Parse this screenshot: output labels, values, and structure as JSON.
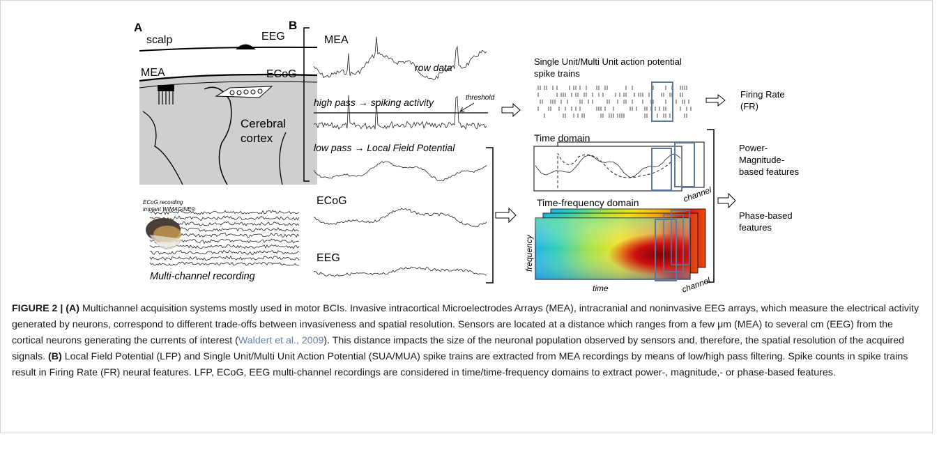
{
  "panel_a": {
    "label": "A",
    "scalp": "scalp",
    "eeg": "EEG",
    "mea": "MEA",
    "ecog": "ECoG",
    "cortex_line1": "Cerebral",
    "cortex_line2": "cortex",
    "implant_line1": "ECoG recording",
    "implant_line2": "implant WIMAGINE®",
    "multichannel": "Multi-channel  recording"
  },
  "panel_b": {
    "label": "B",
    "mea": "MEA",
    "row_data": "row data",
    "high_pass": "high pass → spiking activity",
    "threshold": "threshold",
    "low_pass": "low pass → Local Field Potential",
    "ecog": "ECoG",
    "eeg": "EEG",
    "spike_title_line1": "Single Unit/Multi Unit action potential",
    "spike_title_line2": "spike trains",
    "firing_rate_line1": "Firing Rate",
    "firing_rate_line2": "(FR)",
    "time_domain": "Time domain",
    "time_freq_domain": "Time-frequency  domain",
    "channel": "channel",
    "frequency": "frequency",
    "time": "time",
    "power_line1": "Power-",
    "power_line2": "Magnitude-",
    "power_line3": "based features",
    "phase_line1": "Phase-based",
    "phase_line2": "features"
  },
  "caption": {
    "fig_label": "FIGURE 2 | ",
    "a_label": "(A)",
    "a_text": " Multichannel acquisition systems mostly used in motor BCIs. Invasive intracortical Microelectrodes Arrays (MEA), intracranial and noninvasive EEG arrays, which measure the electrical activity generated by neurons, correspond to different trade-offs between invasiveness and spatial resolution. Sensors are located at a distance which ranges from a few μm (MEA) to several cm (EEG) from the cortical neurons generating the currents of interest (",
    "ref": "Waldert et al., 2009",
    "a_text2": "). This distance impacts the size of the neuronal population observed by sensors and, therefore, the spatial resolution of the acquired signals. ",
    "b_label": "(B)",
    "b_text": " Local Field Potential (LFP) and Single Unit/Multi Unit Action Potential (SUA/MUA) spike trains are extracted from MEA recordings by means of low/high pass filtering. Spike counts in spike trains result in Firing Rate (FR) neural features. LFP, ECoG, EEG multi-channel recordings are considered in time/time-frequency domains to extract power-, magnitude,- or phase-based features."
  }
}
